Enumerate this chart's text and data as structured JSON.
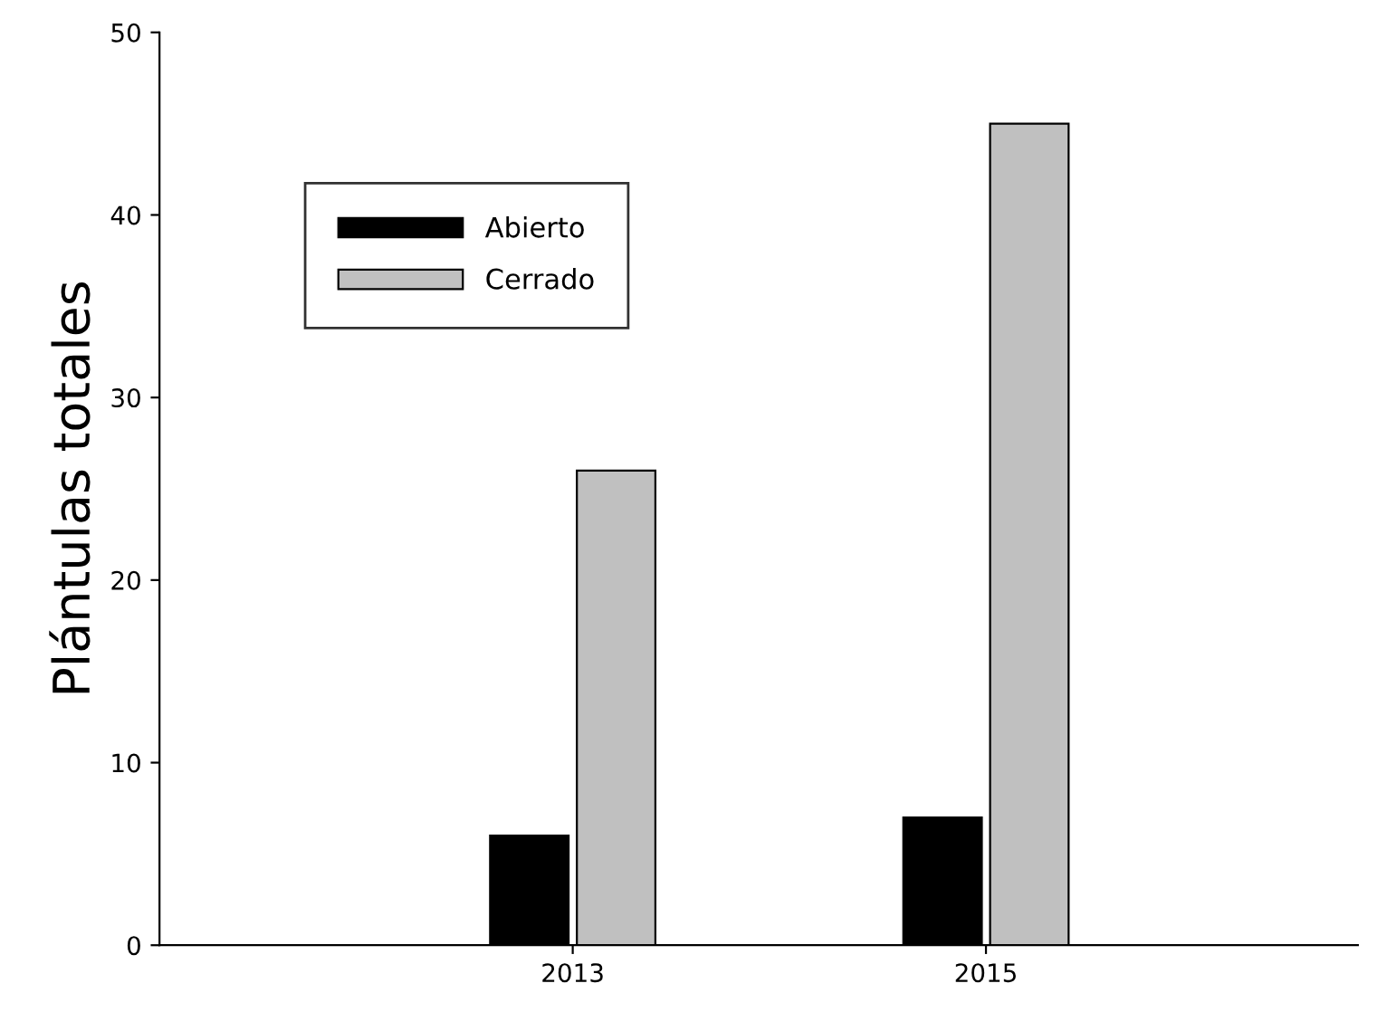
{
  "chart_data": {
    "type": "bar",
    "ylabel": "Plántulas totales",
    "categories": [
      "2013",
      "2015"
    ],
    "series": [
      {
        "name": "Abierto",
        "color": "#000000",
        "values": [
          6,
          7
        ]
      },
      {
        "name": "Cerrado",
        "color": "#c0c0c0",
        "values": [
          26,
          45
        ]
      }
    ],
    "ylim": [
      0,
      50
    ],
    "yticks": [
      0,
      10,
      20,
      30,
      40,
      50
    ],
    "grid": false,
    "legend": "top left"
  }
}
